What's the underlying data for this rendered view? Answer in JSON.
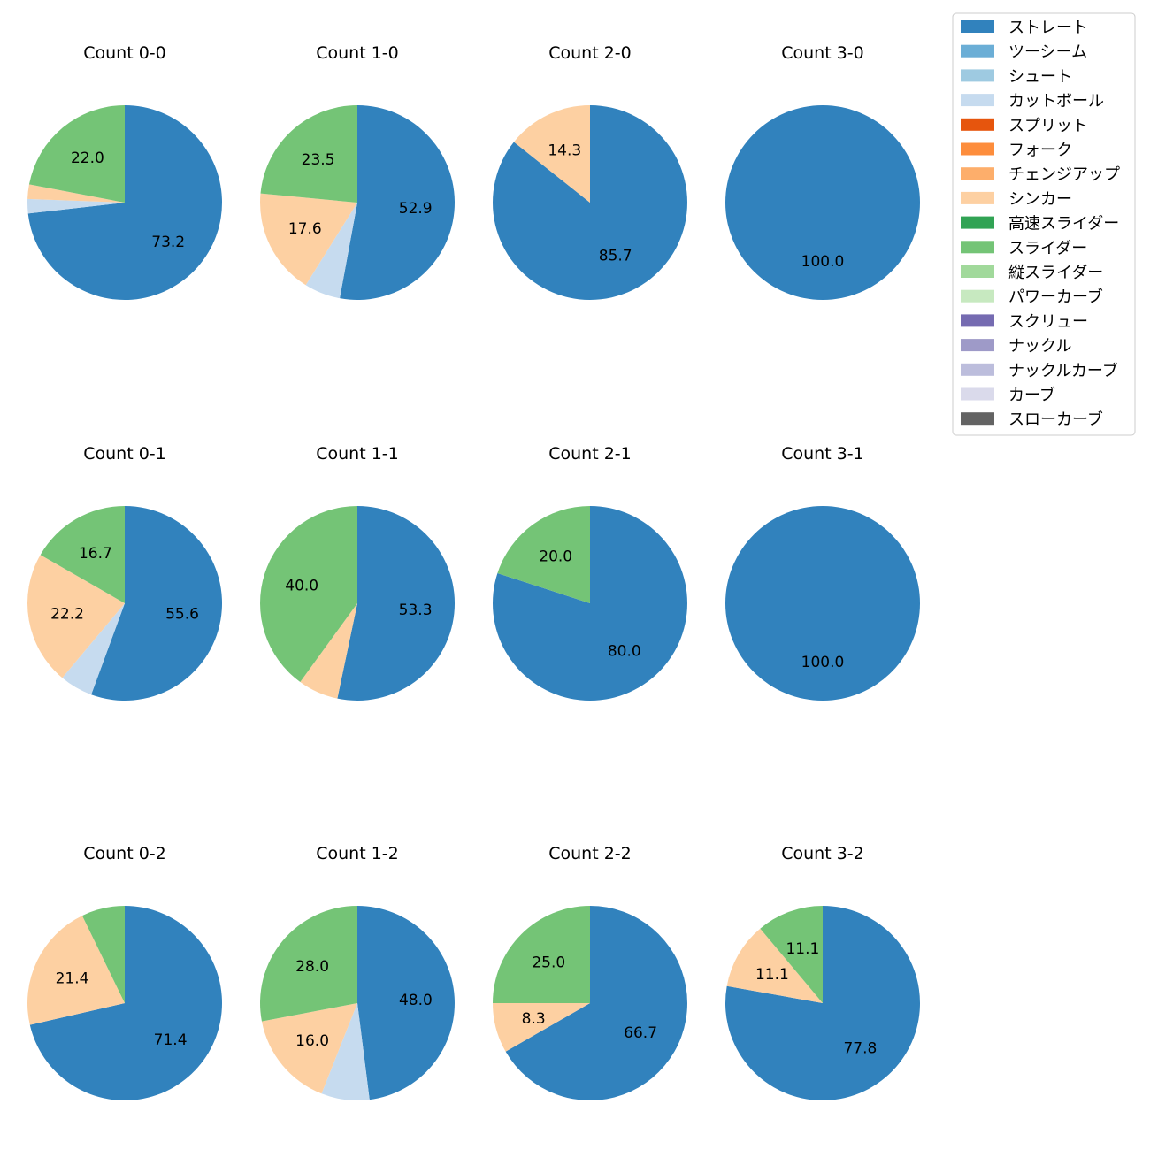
{
  "legend": [
    {
      "label": "ストレート",
      "color": "#3182bd"
    },
    {
      "label": "ツーシーム",
      "color": "#6baed6"
    },
    {
      "label": "シュート",
      "color": "#9ecae1"
    },
    {
      "label": "カットボール",
      "color": "#c6dbef"
    },
    {
      "label": "スプリット",
      "color": "#e6550d"
    },
    {
      "label": "フォーク",
      "color": "#fd8d3c"
    },
    {
      "label": "チェンジアップ",
      "color": "#fdae6b"
    },
    {
      "label": "シンカー",
      "color": "#fdd0a2"
    },
    {
      "label": "高速スライダー",
      "color": "#31a354"
    },
    {
      "label": "スライダー",
      "color": "#74c476"
    },
    {
      "label": "縦スライダー",
      "color": "#a1d99b"
    },
    {
      "label": "パワーカーブ",
      "color": "#c7e9c0"
    },
    {
      "label": "スクリュー",
      "color": "#756bb1"
    },
    {
      "label": "ナックル",
      "color": "#9e9ac8"
    },
    {
      "label": "ナックルカーブ",
      "color": "#bcbddc"
    },
    {
      "label": "カーブ",
      "color": "#dadaeb"
    },
    {
      "label": "スローカーブ",
      "color": "#636363"
    }
  ],
  "chart_data": [
    {
      "type": "pie",
      "title": "Count 0-0",
      "slices": [
        {
          "pitch": "ストレート",
          "value": 73.2,
          "label": "73.2"
        },
        {
          "pitch": "カットボール",
          "value": 2.4,
          "label": ""
        },
        {
          "pitch": "シンカー",
          "value": 2.4,
          "label": ""
        },
        {
          "pitch": "スライダー",
          "value": 22.0,
          "label": "22.0"
        }
      ]
    },
    {
      "type": "pie",
      "title": "Count 1-0",
      "slices": [
        {
          "pitch": "ストレート",
          "value": 52.9,
          "label": "52.9"
        },
        {
          "pitch": "カットボール",
          "value": 6.0,
          "label": ""
        },
        {
          "pitch": "シンカー",
          "value": 17.6,
          "label": "17.6"
        },
        {
          "pitch": "スライダー",
          "value": 23.5,
          "label": "23.5"
        }
      ]
    },
    {
      "type": "pie",
      "title": "Count 2-0",
      "slices": [
        {
          "pitch": "ストレート",
          "value": 85.7,
          "label": "85.7"
        },
        {
          "pitch": "シンカー",
          "value": 14.3,
          "label": "14.3"
        }
      ]
    },
    {
      "type": "pie",
      "title": "Count 3-0",
      "slices": [
        {
          "pitch": "ストレート",
          "value": 100.0,
          "label": "100.0"
        }
      ]
    },
    {
      "type": "pie",
      "title": "Count 0-1",
      "slices": [
        {
          "pitch": "ストレート",
          "value": 55.6,
          "label": "55.6"
        },
        {
          "pitch": "カットボール",
          "value": 5.5,
          "label": ""
        },
        {
          "pitch": "シンカー",
          "value": 22.2,
          "label": "22.2"
        },
        {
          "pitch": "スライダー",
          "value": 16.7,
          "label": "16.7"
        }
      ]
    },
    {
      "type": "pie",
      "title": "Count 1-1",
      "slices": [
        {
          "pitch": "ストレート",
          "value": 53.3,
          "label": "53.3"
        },
        {
          "pitch": "シンカー",
          "value": 6.7,
          "label": ""
        },
        {
          "pitch": "スライダー",
          "value": 40.0,
          "label": "40.0"
        }
      ]
    },
    {
      "type": "pie",
      "title": "Count 2-1",
      "slices": [
        {
          "pitch": "ストレート",
          "value": 80.0,
          "label": "80.0"
        },
        {
          "pitch": "スライダー",
          "value": 20.0,
          "label": "20.0"
        }
      ]
    },
    {
      "type": "pie",
      "title": "Count 3-1",
      "slices": [
        {
          "pitch": "ストレート",
          "value": 100.0,
          "label": "100.0"
        }
      ]
    },
    {
      "type": "pie",
      "title": "Count 0-2",
      "slices": [
        {
          "pitch": "ストレート",
          "value": 71.4,
          "label": "71.4"
        },
        {
          "pitch": "シンカー",
          "value": 21.4,
          "label": "21.4"
        },
        {
          "pitch": "スライダー",
          "value": 7.2,
          "label": ""
        }
      ]
    },
    {
      "type": "pie",
      "title": "Count 1-2",
      "slices": [
        {
          "pitch": "ストレート",
          "value": 48.0,
          "label": "48.0"
        },
        {
          "pitch": "カットボール",
          "value": 8.0,
          "label": ""
        },
        {
          "pitch": "シンカー",
          "value": 16.0,
          "label": "16.0"
        },
        {
          "pitch": "スライダー",
          "value": 28.0,
          "label": "28.0"
        }
      ]
    },
    {
      "type": "pie",
      "title": "Count 2-2",
      "slices": [
        {
          "pitch": "ストレート",
          "value": 66.7,
          "label": "66.7"
        },
        {
          "pitch": "シンカー",
          "value": 8.3,
          "label": "8.3"
        },
        {
          "pitch": "スライダー",
          "value": 25.0,
          "label": "25.0"
        }
      ]
    },
    {
      "type": "pie",
      "title": "Count 3-2",
      "slices": [
        {
          "pitch": "ストレート",
          "value": 77.8,
          "label": "77.8"
        },
        {
          "pitch": "シンカー",
          "value": 11.1,
          "label": "11.1"
        },
        {
          "pitch": "スライダー",
          "value": 11.1,
          "label": "11.1"
        }
      ]
    }
  ]
}
